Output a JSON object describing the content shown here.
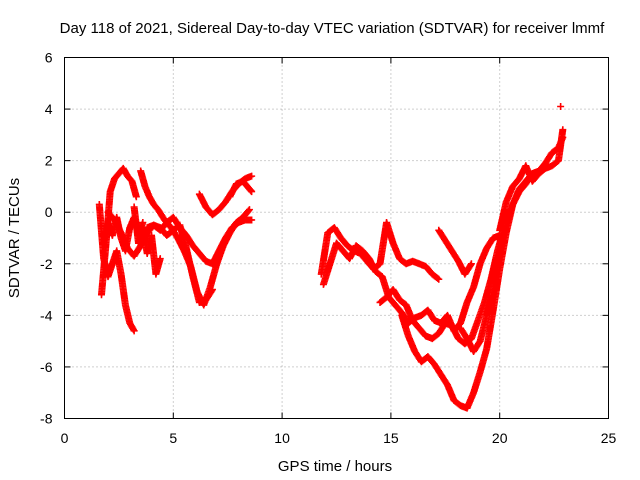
{
  "chart_data": {
    "type": "scatter",
    "title": "Day 118 of 2021, Sidereal Day-to-day VTEC variation (SDTVAR) for receiver lmmf",
    "xlabel": "GPS time / hours",
    "ylabel": "SDTVAR / TECUs",
    "xlim": [
      0,
      25
    ],
    "ylim": [
      -8,
      6
    ],
    "xticks": [
      "0",
      "5",
      "10",
      "15",
      "20",
      "25"
    ],
    "yticks": [
      "-8",
      "-6",
      "-4",
      "-2",
      "0",
      "2",
      "4",
      "6"
    ],
    "grid": true,
    "marker": "plus",
    "color": "#ff0000",
    "series": [
      {
        "x": [
          1.6,
          1.8,
          2.0,
          2.2,
          2.4,
          2.6,
          2.8,
          3.0,
          3.2
        ],
        "y": [
          0.3,
          -1.8,
          -2.5,
          -2.0,
          -1.5,
          -2.4,
          -3.6,
          -4.3,
          -4.6
        ]
      },
      {
        "x": [
          1.7,
          1.9,
          2.1,
          2.3,
          2.5,
          2.7,
          2.9,
          3.1,
          3.3
        ],
        "y": [
          -3.2,
          -1.3,
          0.8,
          1.3,
          1.5,
          1.7,
          1.4,
          1.2,
          0.6
        ]
      },
      {
        "x": [
          1.8,
          2.0,
          2.2,
          2.4,
          2.6,
          2.8,
          3.0,
          3.2,
          3.4,
          3.6
        ],
        "y": [
          -1.2,
          -0.4,
          -0.9,
          -0.2,
          -1.0,
          -1.5,
          -0.6,
          -0.2,
          -0.9,
          -0.4
        ]
      },
      {
        "x": [
          2.0,
          2.3,
          2.6,
          2.9,
          3.2,
          3.5,
          3.8,
          4.1,
          4.4,
          4.7,
          5.0,
          5.3,
          5.6,
          5.9,
          6.2,
          6.5,
          6.8
        ],
        "y": [
          0.0,
          -0.3,
          -0.8,
          -1.4,
          -1.7,
          -1.3,
          -0.8,
          -0.5,
          -0.6,
          -0.9,
          -0.7,
          -0.5,
          -1.4,
          -2.5,
          -3.5,
          -3.4,
          -3.0
        ]
      },
      {
        "x": [
          3.2,
          3.4,
          3.6,
          3.8,
          4.0,
          4.2,
          4.4
        ],
        "y": [
          0.2,
          -1.2,
          -0.6,
          -1.6,
          -0.9,
          -2.4,
          -1.8
        ]
      },
      {
        "x": [
          3.5,
          3.7,
          3.9,
          4.1,
          4.3,
          4.6,
          4.9,
          5.2,
          5.5,
          5.8,
          6.1,
          6.4,
          6.7,
          7.0,
          7.3,
          7.6,
          7.9,
          8.2,
          8.5
        ],
        "y": [
          1.6,
          1.0,
          0.6,
          0.3,
          0.1,
          -0.3,
          -0.6,
          -1.0,
          -1.5,
          -2.1,
          -3.1,
          -3.6,
          -2.9,
          -2.0,
          -1.3,
          -0.8,
          -0.4,
          -0.2,
          0.1
        ]
      },
      {
        "x": [
          3.8,
          4.1,
          4.4,
          4.7,
          5.0,
          5.3,
          5.6,
          5.9,
          6.2,
          6.5,
          6.8,
          7.1,
          7.4,
          7.7,
          8.0,
          8.3,
          8.6
        ],
        "y": [
          -0.6,
          -0.5,
          -0.7,
          -0.4,
          -0.2,
          -0.6,
          -0.9,
          -1.3,
          -1.6,
          -1.9,
          -2.0,
          -1.5,
          -1.0,
          -0.6,
          -0.4,
          -0.3,
          -0.3
        ]
      },
      {
        "x": [
          6.2,
          6.5,
          6.8,
          7.1,
          7.4,
          7.7,
          8.0,
          8.3,
          8.6
        ],
        "y": [
          0.7,
          0.2,
          -0.1,
          0.1,
          0.4,
          0.8,
          1.1,
          1.3,
          1.4
        ]
      },
      {
        "x": [
          7.6,
          7.9,
          8.2,
          8.5,
          8.6
        ],
        "y": [
          0.6,
          1.1,
          1.2,
          0.9,
          0.8
        ]
      },
      {
        "x": [
          11.8,
          12.1,
          12.4,
          12.7,
          13.0,
          13.3,
          13.6,
          13.9,
          14.2,
          14.5,
          14.8,
          15.1,
          15.4,
          15.7,
          16.0,
          16.3,
          16.6,
          16.9,
          17.2
        ],
        "y": [
          -2.4,
          -0.8,
          -0.6,
          -1.0,
          -1.3,
          -1.5,
          -1.6,
          -1.9,
          -2.2,
          -2.0,
          -0.4,
          -1.2,
          -1.8,
          -2.0,
          -1.9,
          -2.0,
          -2.1,
          -2.4,
          -2.6
        ]
      },
      {
        "x": [
          11.9,
          12.2,
          12.5,
          12.8,
          13.1,
          13.4,
          13.7,
          14.0,
          14.3,
          14.6,
          14.9,
          15.2,
          15.5,
          15.8,
          16.1,
          16.4,
          16.7,
          17.0,
          17.3,
          17.6,
          17.9,
          18.2,
          18.5,
          18.8,
          19.1,
          19.4,
          19.7,
          20.0
        ],
        "y": [
          -2.8,
          -2.0,
          -1.2,
          -1.5,
          -1.8,
          -1.3,
          -1.5,
          -1.8,
          -2.3,
          -2.5,
          -3.3,
          -3.6,
          -3.9,
          -4.3,
          -4.1,
          -4.0,
          -3.8,
          -4.2,
          -4.3,
          -4.0,
          -4.6,
          -4.3,
          -3.5,
          -2.9,
          -2.0,
          -1.4,
          -1.0,
          -0.9
        ]
      },
      {
        "x": [
          14.5,
          14.8,
          15.1,
          15.4,
          15.7,
          16.0,
          16.3,
          16.6,
          16.9,
          17.2,
          17.5,
          17.8,
          18.1,
          18.4,
          18.7,
          19.0,
          19.3,
          19.6,
          19.9,
          20.2
        ],
        "y": [
          -3.5,
          -3.3,
          -3.0,
          -3.4,
          -3.6,
          -4.2,
          -4.5,
          -4.8,
          -4.9,
          -4.7,
          -4.3,
          -4.4,
          -4.9,
          -5.1,
          -4.9,
          -4.2,
          -3.5,
          -2.6,
          -1.5,
          -0.6
        ]
      },
      {
        "x": [
          15.5,
          15.8,
          16.1,
          16.4,
          16.7,
          17.0,
          17.3,
          17.6,
          17.9,
          18.2,
          18.5,
          18.8,
          19.1,
          19.4,
          19.7,
          20.0,
          20.3,
          20.6,
          20.9,
          21.2,
          21.5
        ],
        "y": [
          -4.0,
          -4.8,
          -5.4,
          -5.8,
          -5.6,
          -5.9,
          -6.3,
          -6.7,
          -7.3,
          -7.5,
          -7.6,
          -7.0,
          -6.2,
          -5.3,
          -3.8,
          -2.2,
          -0.8,
          0.3,
          0.9,
          1.2,
          1.5
        ]
      },
      {
        "x": [
          17.2,
          17.5,
          17.8,
          18.1,
          18.4,
          18.7
        ],
        "y": [
          -0.7,
          -1.1,
          -1.5,
          -1.9,
          -2.4,
          -2.0
        ]
      },
      {
        "x": [
          18.2,
          18.5,
          18.8,
          19.1,
          19.4,
          19.7,
          20.0,
          20.3,
          20.6,
          20.9,
          21.2,
          21.5,
          21.8,
          22.1,
          22.4,
          22.7,
          22.9
        ],
        "y": [
          -4.5,
          -4.9,
          -5.4,
          -5.0,
          -4.0,
          -3.0,
          -1.6,
          -0.5,
          0.3,
          0.8,
          1.1,
          1.5,
          1.6,
          1.9,
          2.3,
          2.5,
          2.9
        ]
      },
      {
        "x": [
          20.0,
          20.3,
          20.6,
          20.9,
          21.2,
          21.5,
          21.8,
          22.1,
          22.4,
          22.7,
          22.9
        ],
        "y": [
          -0.7,
          0.4,
          1.0,
          1.3,
          1.8,
          1.2,
          1.5,
          1.7,
          1.8,
          2.0,
          3.2
        ]
      },
      {
        "x": [
          22.8
        ],
        "y": [
          4.1
        ]
      }
    ]
  }
}
